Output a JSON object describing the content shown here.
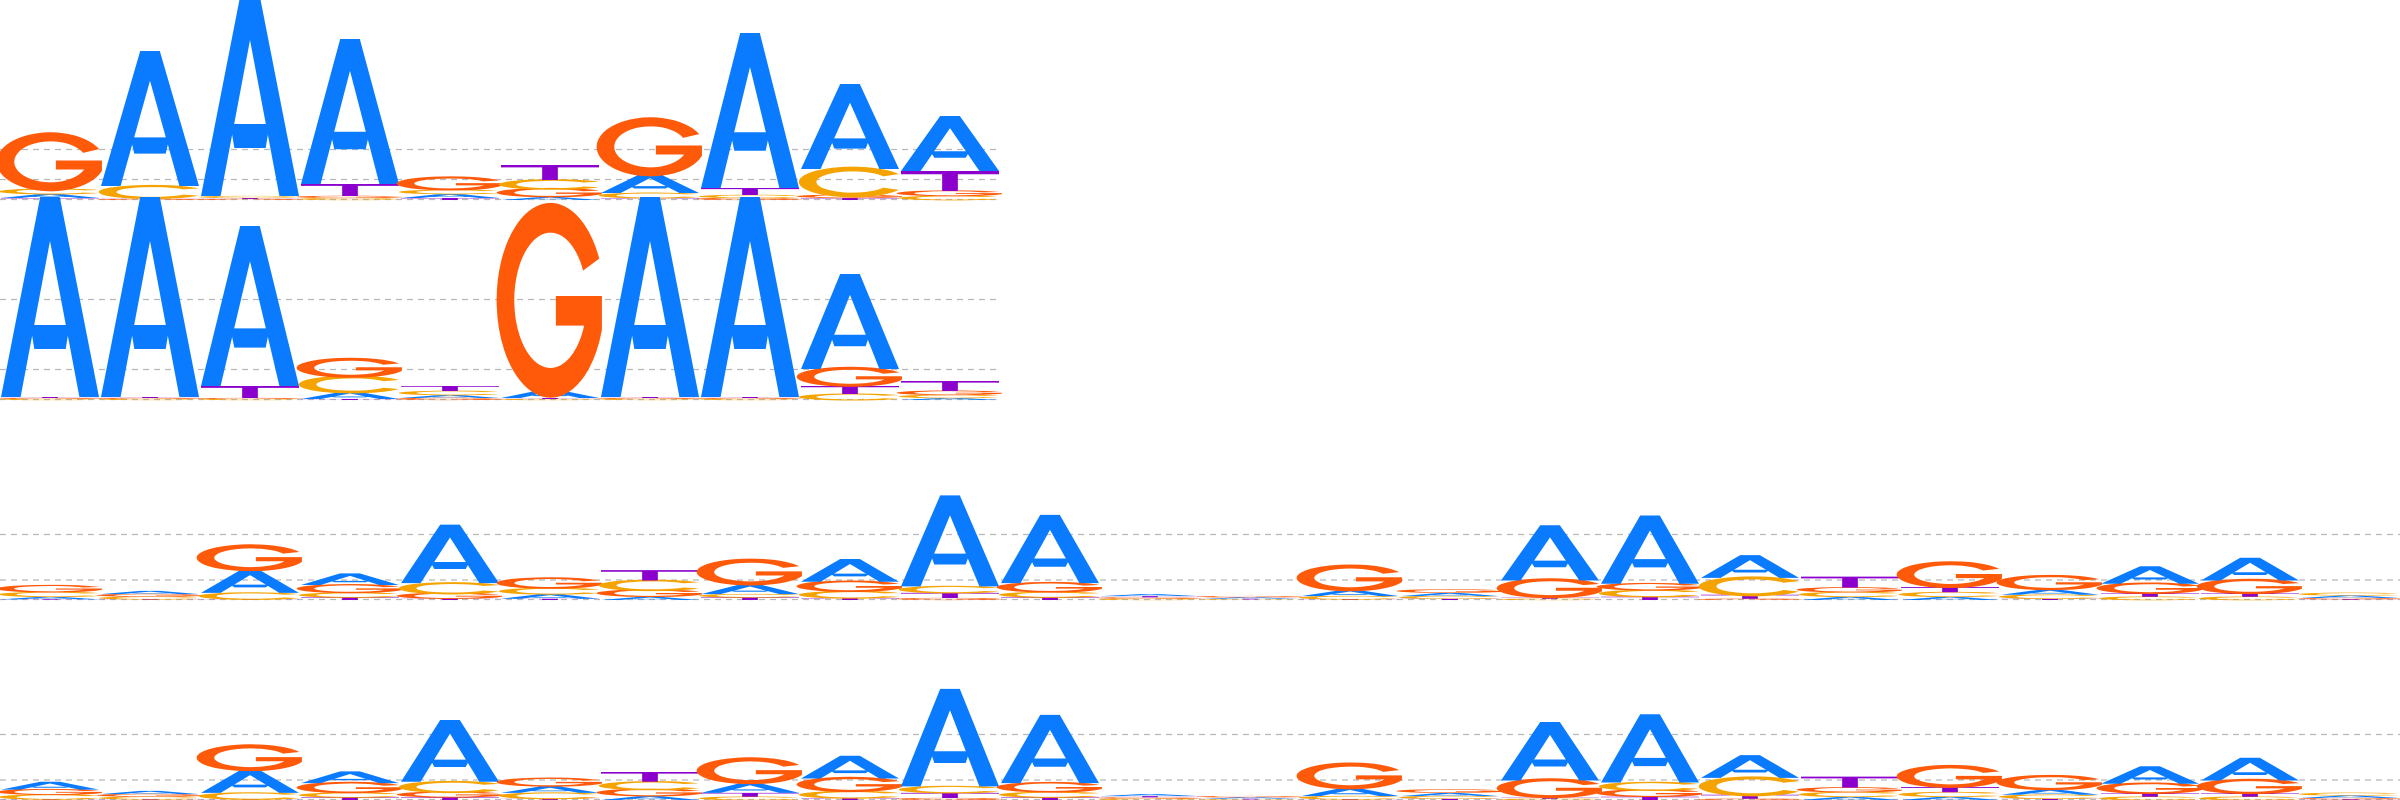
{
  "colors": {
    "A": "#0a7bff",
    "C": "#f5a300",
    "G": "#ff5a0a",
    "T": "#8b00cc",
    "gridline": "#b8b8b8",
    "background": "#ffffff"
  },
  "letters": [
    "A",
    "C",
    "G",
    "T"
  ],
  "logos": [
    {
      "name": "motif-logo-1",
      "max_bits": 2,
      "gridlines": [
        0.5,
        0.2,
        0.0
      ],
      "positions": [
        {
          "A": 0.04,
          "C": 0.05,
          "G": 0.5,
          "T": 0.02
        },
        {
          "A": 1.35,
          "C": 0.12,
          "G": 0.01,
          "T": 0.01
        },
        {
          "A": 2.0,
          "C": 0.02,
          "G": 0.01,
          "T": 0.01
        },
        {
          "A": 1.45,
          "C": 0.02,
          "G": 0.02,
          "T": 0.12
        },
        {
          "A": 0.04,
          "C": 0.04,
          "G": 0.12,
          "T": 0.02
        },
        {
          "A": 0.03,
          "C": 0.09,
          "G": 0.08,
          "T": 0.15
        },
        {
          "A": 0.19,
          "C": 0.05,
          "G": 0.5,
          "T": 0.02
        },
        {
          "A": 1.55,
          "C": 0.03,
          "G": 0.02,
          "T": 0.07
        },
        {
          "A": 0.85,
          "C": 0.26,
          "G": 0.03,
          "T": 0.02
        },
        {
          "A": 0.55,
          "C": 0.04,
          "G": 0.05,
          "T": 0.2
        }
      ]
    },
    {
      "name": "motif-logo-2",
      "max_bits": 2,
      "gridlines": [
        1.0,
        0.3,
        0.0
      ],
      "positions": [
        {
          "A": 2.0,
          "C": 0.01,
          "G": 0.01,
          "T": 0.01
        },
        {
          "A": 2.0,
          "C": 0.01,
          "G": 0.01,
          "T": 0.01
        },
        {
          "A": 1.6,
          "C": 0.01,
          "G": 0.01,
          "T": 0.12
        },
        {
          "A": 0.07,
          "C": 0.15,
          "G": 0.17,
          "T": 0.01
        },
        {
          "A": 0.03,
          "C": 0.04,
          "G": 0.02,
          "T": 0.05
        },
        {
          "A": 0.08,
          "C": 0.01,
          "G": 1.65,
          "T": 0.01
        },
        {
          "A": 2.0,
          "C": 0.01,
          "G": 0.01,
          "T": 0.01
        },
        {
          "A": 2.0,
          "C": 0.01,
          "G": 0.01,
          "T": 0.01
        },
        {
          "A": 0.95,
          "C": 0.06,
          "G": 0.17,
          "T": 0.08
        },
        {
          "A": 0.02,
          "C": 0.03,
          "G": 0.04,
          "T": 0.1
        }
      ]
    },
    {
      "name": "motif-logo-3",
      "max_bits": 2,
      "gridlines": [
        1.0,
        0.3,
        0.0
      ],
      "positions": [
        {
          "A": 0.04,
          "C": 0.07,
          "G": 0.1,
          "T": 0.01
        },
        {
          "A": 0.05,
          "C": 0.04,
          "G": 0.04,
          "T": 0.01
        },
        {
          "A": 0.35,
          "C": 0.1,
          "G": 0.35,
          "T": 0.01
        },
        {
          "A": 0.18,
          "C": 0.07,
          "G": 0.12,
          "T": 0.04
        },
        {
          "A": 0.9,
          "C": 0.16,
          "G": 0.08,
          "T": 0.02
        },
        {
          "A": 0.07,
          "C": 0.09,
          "G": 0.15,
          "T": 0.02
        },
        {
          "A": 0.05,
          "C": 0.15,
          "G": 0.1,
          "T": 0.16
        },
        {
          "A": 0.15,
          "C": 0.05,
          "G": 0.35,
          "T": 0.04
        },
        {
          "A": 0.35,
          "C": 0.1,
          "G": 0.15,
          "T": 0.03
        },
        {
          "A": 1.4,
          "C": 0.1,
          "G": 0.03,
          "T": 0.08
        },
        {
          "A": 1.05,
          "C": 0.08,
          "G": 0.14,
          "T": 0.04
        },
        {
          "A": 0.03,
          "C": 0.02,
          "G": 0.02,
          "T": 0.02
        },
        {
          "A": 0.02,
          "C": 0.01,
          "G": 0.02,
          "T": 0.01
        },
        {
          "A": 0.09,
          "C": 0.05,
          "G": 0.35,
          "T": 0.01
        },
        {
          "A": 0.05,
          "C": 0.04,
          "G": 0.05,
          "T": 0.02
        },
        {
          "A": 0.85,
          "C": 0.02,
          "G": 0.26,
          "T": 0.02
        },
        {
          "A": 1.05,
          "C": 0.1,
          "G": 0.1,
          "T": 0.05
        },
        {
          "A": 0.35,
          "C": 0.26,
          "G": 0.02,
          "T": 0.06
        },
        {
          "A": 0.05,
          "C": 0.07,
          "G": 0.07,
          "T": 0.17
        },
        {
          "A": 0.05,
          "C": 0.07,
          "G": 0.35,
          "T": 0.08
        },
        {
          "A": 0.08,
          "C": 0.06,
          "G": 0.2,
          "T": 0.02
        },
        {
          "A": 0.27,
          "C": 0.05,
          "G": 0.15,
          "T": 0.05
        },
        {
          "A": 0.35,
          "C": 0.05,
          "G": 0.2,
          "T": 0.05
        },
        {
          "A": 0.04,
          "C": 0.04,
          "G": 0.02,
          "T": 0.01
        }
      ]
    },
    {
      "name": "motif-logo-4",
      "max_bits": 2,
      "gridlines": [
        1.0,
        0.3,
        0.0
      ],
      "positions": [
        {
          "A": 0.12,
          "C": 0.07,
          "G": 0.08,
          "T": 0.01
        },
        {
          "A": 0.05,
          "C": 0.04,
          "G": 0.04,
          "T": 0.01
        },
        {
          "A": 0.35,
          "C": 0.1,
          "G": 0.35,
          "T": 0.01
        },
        {
          "A": 0.18,
          "C": 0.07,
          "G": 0.15,
          "T": 0.04
        },
        {
          "A": 0.95,
          "C": 0.16,
          "G": 0.08,
          "T": 0.04
        },
        {
          "A": 0.1,
          "C": 0.09,
          "G": 0.12,
          "T": 0.02
        },
        {
          "A": 0.06,
          "C": 0.12,
          "G": 0.1,
          "T": 0.15
        },
        {
          "A": 0.15,
          "C": 0.05,
          "G": 0.35,
          "T": 0.06
        },
        {
          "A": 0.35,
          "C": 0.1,
          "G": 0.2,
          "T": 0.03
        },
        {
          "A": 1.5,
          "C": 0.1,
          "G": 0.03,
          "T": 0.08
        },
        {
          "A": 1.05,
          "C": 0.08,
          "G": 0.14,
          "T": 0.04
        },
        {
          "A": 0.03,
          "C": 0.02,
          "G": 0.02,
          "T": 0.02
        },
        {
          "A": 0.02,
          "C": 0.01,
          "G": 0.02,
          "T": 0.01
        },
        {
          "A": 0.12,
          "C": 0.05,
          "G": 0.35,
          "T": 0.01
        },
        {
          "A": 0.05,
          "C": 0.04,
          "G": 0.05,
          "T": 0.02
        },
        {
          "A": 0.9,
          "C": 0.02,
          "G": 0.26,
          "T": 0.02
        },
        {
          "A": 1.05,
          "C": 0.12,
          "G": 0.1,
          "T": 0.05
        },
        {
          "A": 0.35,
          "C": 0.26,
          "G": 0.02,
          "T": 0.06
        },
        {
          "A": 0.05,
          "C": 0.07,
          "G": 0.07,
          "T": 0.17
        },
        {
          "A": 0.05,
          "C": 0.07,
          "G": 0.3,
          "T": 0.08
        },
        {
          "A": 0.08,
          "C": 0.06,
          "G": 0.2,
          "T": 0.02
        },
        {
          "A": 0.27,
          "C": 0.05,
          "G": 0.15,
          "T": 0.05
        },
        {
          "A": 0.35,
          "C": 0.05,
          "G": 0.2,
          "T": 0.05
        },
        {
          "A": 0.04,
          "C": 0.04,
          "G": 0.02,
          "T": 0.01
        }
      ]
    }
  ]
}
